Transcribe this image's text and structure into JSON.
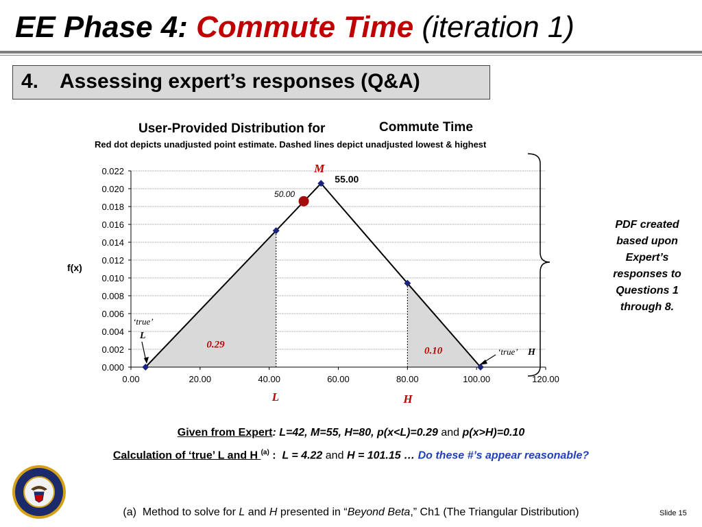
{
  "slide": {
    "title_prefix": "EE Phase 4: ",
    "title_accent": "Commute Time",
    "title_suffix": " (iteration 1)",
    "section_number": "4.",
    "section_text": "Assessing expert’s responses (Q&A)"
  },
  "chart_data": {
    "type": "line",
    "title": "User-Provided Distribution for  Commute Time",
    "title_part1": "User-Provided Distribution for",
    "title_part2": "Commute Time",
    "subtitle": "Red dot depicts unadjusted point estimate. Dashed lines depict unadjusted lowest & highest",
    "ylabel": "f(x)",
    "xlabel": "",
    "xlim": [
      0,
      120
    ],
    "ylim": [
      0,
      0.022
    ],
    "x_ticks": [
      "0.00",
      "20.00",
      "40.00",
      "60.00",
      "80.00",
      "100.00",
      "120.00"
    ],
    "x_tick_values": [
      0,
      20,
      40,
      60,
      80,
      100,
      120
    ],
    "y_ticks": [
      "0.000",
      "0.002",
      "0.004",
      "0.006",
      "0.008",
      "0.010",
      "0.012",
      "0.014",
      "0.016",
      "0.018",
      "0.020",
      "0.022"
    ],
    "y_tick_values": [
      0,
      0.002,
      0.004,
      0.006,
      0.008,
      0.01,
      0.012,
      0.014,
      0.016,
      0.018,
      0.02,
      0.022
    ],
    "grid": true,
    "series": [
      {
        "type": "triangle-pdf",
        "points": [
          {
            "x": 4.22,
            "y": 0.0
          },
          {
            "x": 42,
            "y": 0.0153
          },
          {
            "x": 55,
            "y": 0.0206
          },
          {
            "x": 80,
            "y": 0.0094
          },
          {
            "x": 101.15,
            "y": 0.0
          }
        ]
      }
    ],
    "point_estimate": {
      "x": 50,
      "y": 0.0186,
      "label": "50.00"
    },
    "mode_label": "55.00",
    "shaded_regions": [
      {
        "from": 4.22,
        "to": 42,
        "label": "0.29"
      },
      {
        "from": 80,
        "to": 101.15,
        "label": "0.10"
      }
    ],
    "annotations": {
      "M": "M",
      "L_below_axis": "L",
      "H_below_axis": "H",
      "true_L_quote": "‘true’",
      "true_L_letter": "L",
      "true_H_quote": "‘true’",
      "true_H_letter": "H"
    },
    "colors": {
      "line": "#000000",
      "markers": "#1a237e",
      "point_estimate": "#a50d0d",
      "shade": "#d9d9d9",
      "annotation_red": "#c00000"
    }
  },
  "side_note": "PDF created based upon Expert’s responses to Questions 1 through 8.",
  "given": {
    "label": "Given from Expert",
    "values": ": L=42, M=55, H=80,  p(x<L)=0.29",
    "and": "and",
    "last": "p(x>H)=0.10"
  },
  "calc": {
    "label": "Calculation of ‘true’ L and H ",
    "sup": "(a)",
    "colon": " :  ",
    "l_value": "L = 4.22",
    "and": "and",
    "h_value": "H = 101.15 …",
    "question": "Do these #’s appear reasonable?"
  },
  "footnote": {
    "prefix": "(a)  Method to solve for ",
    "l": "L",
    "mid": " and ",
    "h": "H",
    "mid2": " presented in “",
    "book": "Beyond Beta",
    "suffix": ",” Ch1 (The Triangular Distribution)"
  },
  "slide_number": "Slide 15",
  "seal_text": "DEPARTMENT OF THE NAVY · CENTER FOR COST ANALYSIS"
}
